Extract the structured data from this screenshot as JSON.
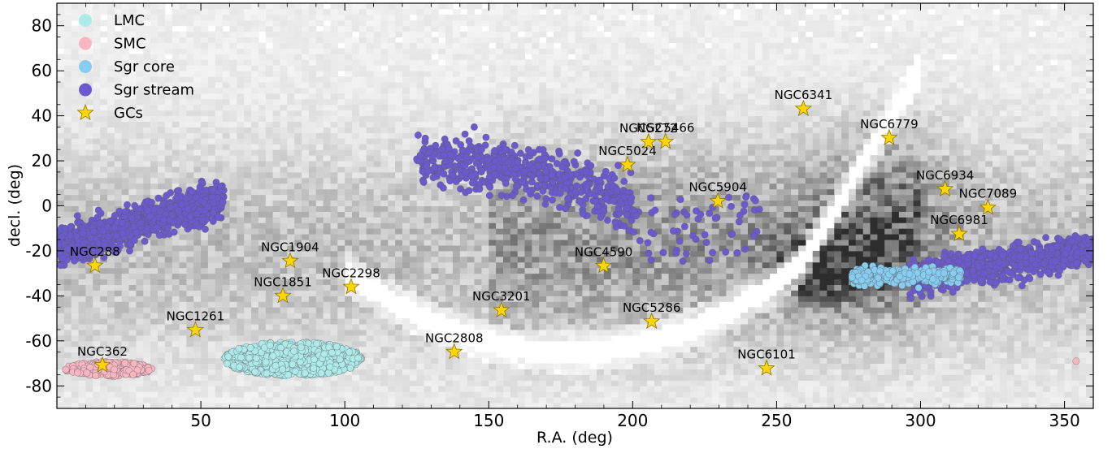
{
  "chart_data": {
    "type": "scatter",
    "xlabel": "R.A. (deg)",
    "ylabel": "decl. (deg)",
    "xlim": [
      0,
      360
    ],
    "ylim": [
      -90,
      90
    ],
    "x_ticks": [
      50,
      100,
      150,
      200,
      250,
      300,
      350
    ],
    "y_ticks": [
      -80,
      -60,
      -40,
      -20,
      0,
      20,
      40,
      60,
      80
    ],
    "grid": false,
    "legend_position": "top-left",
    "background": "2D density histogram of all stars (grayscale)",
    "legend": [
      {
        "label": "LMC",
        "color": "#aeeaea",
        "marker": "circle"
      },
      {
        "label": "SMC",
        "color": "#f7b6c2",
        "marker": "circle"
      },
      {
        "label": "Sgr core",
        "color": "#87cdf2",
        "marker": "circle"
      },
      {
        "label": "Sgr stream",
        "color": "#6a5acd",
        "marker": "circle"
      },
      {
        "label": "GCs",
        "color": "#ffd700",
        "marker": "star"
      }
    ],
    "globular_clusters": [
      {
        "name": "NGC288",
        "ra": 13.2,
        "dec": -26.6
      },
      {
        "name": "NGC362",
        "ra": 15.8,
        "dec": -70.8
      },
      {
        "name": "NGC1261",
        "ra": 48.1,
        "dec": -55.2
      },
      {
        "name": "NGC1851",
        "ra": 78.5,
        "dec": -40.0
      },
      {
        "name": "NGC1904",
        "ra": 81.0,
        "dec": -24.5
      },
      {
        "name": "NGC2298",
        "ra": 102.2,
        "dec": -36.0
      },
      {
        "name": "NGC2808",
        "ra": 138.0,
        "dec": -64.9
      },
      {
        "name": "NGC3201",
        "ra": 154.4,
        "dec": -46.4
      },
      {
        "name": "NGC4590",
        "ra": 189.9,
        "dec": -26.7
      },
      {
        "name": "NGC5024",
        "ra": 198.2,
        "dec": 18.2
      },
      {
        "name": "NGC5272",
        "ra": 205.5,
        "dec": 28.4
      },
      {
        "name": "NGC5466",
        "ra": 211.4,
        "dec": 28.5
      },
      {
        "name": "NGC5286",
        "ra": 206.6,
        "dec": -51.4
      },
      {
        "name": "NGC5904",
        "ra": 229.6,
        "dec": 2.1
      },
      {
        "name": "NGC6101",
        "ra": 246.5,
        "dec": -72.2
      },
      {
        "name": "NGC6341",
        "ra": 259.3,
        "dec": 43.1
      },
      {
        "name": "NGC6779",
        "ra": 289.1,
        "dec": 30.2
      },
      {
        "name": "NGC6934",
        "ra": 308.5,
        "dec": 7.4
      },
      {
        "name": "NGC6981",
        "ra": 313.4,
        "dec": -12.5
      },
      {
        "name": "NGC7089",
        "ra": 323.4,
        "dec": -0.8
      }
    ]
  }
}
